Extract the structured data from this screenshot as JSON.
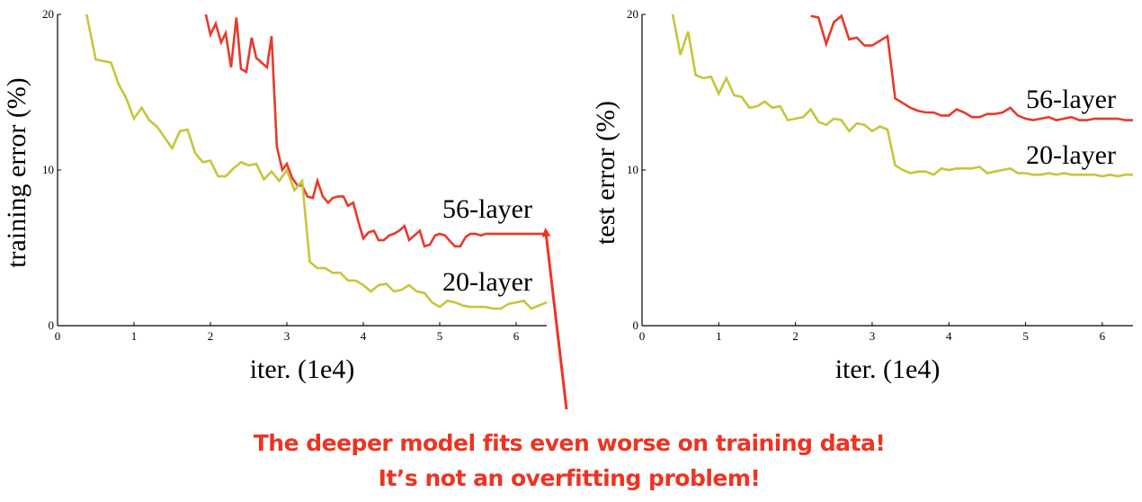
{
  "colors": {
    "series_56": "#e8392c",
    "series_20": "#c6c63a",
    "annotation": "#ee3322",
    "axis": "#000000"
  },
  "chart_data": [
    {
      "type": "line",
      "name": "training",
      "xlabel": "iter. (1e4)",
      "ylabel": "training error (%)",
      "xlim": [
        0,
        6.4
      ],
      "ylim": [
        0,
        20
      ],
      "xticks": [
        0,
        1,
        2,
        3,
        4,
        5,
        6
      ],
      "yticks": [
        0,
        10,
        20
      ],
      "grid": false,
      "series": [
        {
          "name": "56-layer",
          "x": [
            1.94,
            2.0,
            2.07,
            2.14,
            2.2,
            2.27,
            2.34,
            2.4,
            2.47,
            2.54,
            2.6,
            2.67,
            2.74,
            2.8,
            2.87,
            2.94,
            3.0,
            3.07,
            3.14,
            3.2,
            3.27,
            3.34,
            3.4,
            3.47,
            3.54,
            3.6,
            3.67,
            3.74,
            3.8,
            3.87,
            3.94,
            4.0,
            4.07,
            4.14,
            4.2,
            4.27,
            4.34,
            4.4,
            4.47,
            4.54,
            4.6,
            4.67,
            4.74,
            4.8,
            4.87,
            4.94,
            5.0,
            5.07,
            5.14,
            5.2,
            5.27,
            5.34,
            5.4,
            5.47,
            5.54,
            5.6,
            5.67,
            5.74,
            5.8,
            5.87,
            5.94,
            6.0,
            6.07,
            6.14,
            6.2,
            6.27,
            6.34,
            6.4
          ],
          "y": [
            20.0,
            18.7,
            19.4,
            18.2,
            18.8,
            16.6,
            19.8,
            16.5,
            16.3,
            18.5,
            17.2,
            16.9,
            16.6,
            18.6,
            11.5,
            10.0,
            10.4,
            9.5,
            9.0,
            9.0,
            8.3,
            8.2,
            9.3,
            8.3,
            7.9,
            8.2,
            8.3,
            8.3,
            7.7,
            7.9,
            6.6,
            5.6,
            6.0,
            6.1,
            5.5,
            5.5,
            5.8,
            5.9,
            6.1,
            6.4,
            5.5,
            5.8,
            6.1,
            5.1,
            5.2,
            5.8,
            5.9,
            5.8,
            5.4,
            5.1,
            5.1,
            5.7,
            5.9,
            5.9,
            5.8,
            5.9,
            5.9,
            5.9,
            5.9,
            5.9,
            5.9,
            5.9,
            5.9,
            5.9,
            5.9,
            5.9,
            5.9,
            5.9
          ]
        },
        {
          "name": "20-layer",
          "x": [
            0.38,
            0.5,
            0.7,
            0.8,
            0.9,
            1.0,
            1.1,
            1.2,
            1.3,
            1.4,
            1.5,
            1.6,
            1.7,
            1.8,
            1.9,
            2.0,
            2.1,
            2.2,
            2.3,
            2.4,
            2.5,
            2.6,
            2.7,
            2.8,
            2.9,
            3.0,
            3.1,
            3.2,
            3.3,
            3.4,
            3.5,
            3.6,
            3.7,
            3.8,
            3.9,
            4.0,
            4.1,
            4.2,
            4.3,
            4.4,
            4.5,
            4.6,
            4.7,
            4.8,
            4.9,
            5.0,
            5.1,
            5.2,
            5.3,
            5.4,
            5.5,
            5.6,
            5.7,
            5.8,
            5.9,
            6.0,
            6.1,
            6.2,
            6.3,
            6.4
          ],
          "y": [
            20.0,
            17.1,
            16.9,
            15.5,
            14.6,
            13.3,
            14.0,
            13.2,
            12.8,
            12.1,
            11.4,
            12.5,
            12.6,
            11.1,
            10.5,
            10.6,
            9.6,
            9.6,
            10.1,
            10.5,
            10.3,
            10.4,
            9.4,
            9.9,
            9.3,
            10.0,
            8.7,
            9.3,
            4.1,
            3.7,
            3.7,
            3.4,
            3.4,
            2.9,
            2.9,
            2.6,
            2.2,
            2.6,
            2.7,
            2.2,
            2.3,
            2.6,
            2.2,
            2.1,
            1.5,
            1.2,
            1.6,
            1.5,
            1.3,
            1.2,
            1.2,
            1.2,
            1.1,
            1.1,
            1.4,
            1.5,
            1.6,
            1.1,
            1.3,
            1.5
          ]
        }
      ]
    },
    {
      "type": "line",
      "name": "test",
      "xlabel": "iter. (1e4)",
      "ylabel": "test error (%)",
      "xlim": [
        0,
        6.4
      ],
      "ylim": [
        0,
        20
      ],
      "xticks": [
        0,
        1,
        2,
        3,
        4,
        5,
        6
      ],
      "yticks": [
        0,
        10,
        20
      ],
      "grid": false,
      "series": [
        {
          "name": "56-layer",
          "x": [
            2.2,
            2.3,
            2.4,
            2.5,
            2.6,
            2.7,
            2.8,
            2.9,
            3.0,
            3.1,
            3.2,
            3.3,
            3.4,
            3.5,
            3.6,
            3.7,
            3.8,
            3.9,
            4.0,
            4.1,
            4.2,
            4.3,
            4.4,
            4.5,
            4.6,
            4.7,
            4.8,
            4.9,
            5.0,
            5.1,
            5.2,
            5.3,
            5.4,
            5.5,
            5.6,
            5.7,
            5.8,
            5.9,
            6.0,
            6.1,
            6.2,
            6.3,
            6.4
          ],
          "y": [
            19.9,
            19.8,
            18.1,
            19.5,
            19.9,
            18.4,
            18.5,
            18.0,
            18.0,
            18.3,
            18.6,
            14.6,
            14.3,
            14.0,
            13.8,
            13.7,
            13.7,
            13.5,
            13.5,
            13.9,
            13.7,
            13.4,
            13.4,
            13.6,
            13.6,
            13.7,
            14.0,
            13.5,
            13.3,
            13.2,
            13.3,
            13.4,
            13.2,
            13.3,
            13.4,
            13.2,
            13.2,
            13.3,
            13.3,
            13.3,
            13.3,
            13.2,
            13.2
          ]
        },
        {
          "name": "20-layer",
          "x": [
            0.4,
            0.5,
            0.6,
            0.7,
            0.8,
            0.9,
            1.0,
            1.1,
            1.2,
            1.3,
            1.4,
            1.5,
            1.6,
            1.7,
            1.8,
            1.9,
            2.0,
            2.1,
            2.2,
            2.3,
            2.4,
            2.5,
            2.6,
            2.7,
            2.8,
            2.9,
            3.0,
            3.1,
            3.2,
            3.3,
            3.4,
            3.5,
            3.6,
            3.7,
            3.8,
            3.9,
            4.0,
            4.1,
            4.2,
            4.3,
            4.4,
            4.5,
            4.6,
            4.7,
            4.8,
            4.9,
            5.0,
            5.1,
            5.2,
            5.3,
            5.4,
            5.5,
            5.6,
            5.7,
            5.8,
            5.9,
            6.0,
            6.1,
            6.2,
            6.3,
            6.4
          ],
          "y": [
            20.0,
            17.4,
            18.9,
            16.1,
            15.9,
            16.0,
            14.9,
            15.9,
            14.8,
            14.7,
            14.0,
            14.1,
            14.4,
            14.0,
            14.1,
            13.2,
            13.3,
            13.4,
            13.9,
            13.1,
            12.9,
            13.3,
            13.2,
            12.5,
            13.0,
            12.9,
            12.5,
            12.8,
            12.6,
            10.3,
            10.0,
            9.8,
            9.9,
            9.9,
            9.7,
            10.1,
            10.0,
            10.1,
            10.1,
            10.1,
            10.2,
            9.8,
            9.9,
            10.0,
            10.1,
            9.8,
            9.8,
            9.7,
            9.7,
            9.8,
            9.7,
            9.8,
            9.7,
            9.7,
            9.7,
            9.7,
            9.6,
            9.7,
            9.6,
            9.7,
            9.7
          ]
        }
      ]
    }
  ],
  "annotation": {
    "line1": "The deeper model fits even worse on training data!",
    "line2": "It’s not an overfitting problem!"
  }
}
